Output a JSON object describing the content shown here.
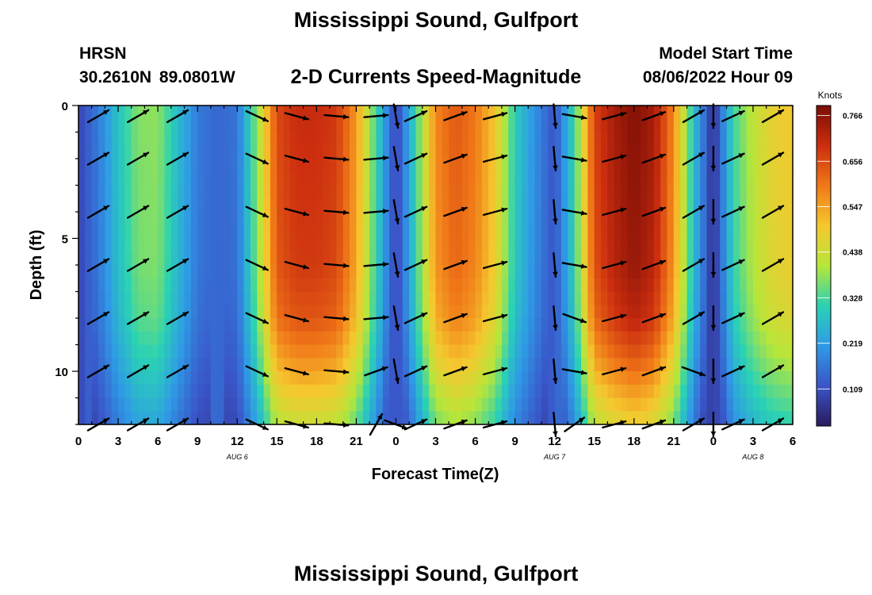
{
  "header": {
    "title": "Mississippi Sound, Gulfport",
    "station": "HRSN",
    "coordinates": "30.2610N  89.0801W",
    "subtitle": "2-D Currents Speed-Magnitude",
    "model_start_label": "Model Start Time",
    "model_start_value": "08/06/2022 Hour 09"
  },
  "footer": {
    "title": "Mississippi Sound, Gulfport"
  },
  "colors": {
    "colormap": [
      "#2a1a5e",
      "#3a55c8",
      "#2f9ae6",
      "#2ad2b4",
      "#b6e63a",
      "#f5c82e",
      "#f07818",
      "#cc2e0f",
      "#7a0d05"
    ],
    "arrow": "#000000"
  },
  "chart_data": {
    "type": "heatmap",
    "xlabel": "Forecast Time(Z)",
    "ylabel": "Depth (ft)",
    "colorbar_label": "Knots",
    "x_tick_labels": [
      "0",
      "3",
      "6",
      "9",
      "12",
      "15",
      "18",
      "21",
      "0",
      "3",
      "6",
      "9",
      "12",
      "15",
      "18",
      "21",
      "0",
      "3",
      "6"
    ],
    "date_labels": [
      {
        "label": "AUG 6",
        "hour": 12
      },
      {
        "label": "AUG 7",
        "hour": 36
      },
      {
        "label": "AUG 8",
        "hour": 51
      }
    ],
    "x_range_hours": [
      0,
      54
    ],
    "y_tick_labels": [
      "0",
      "5",
      "10"
    ],
    "y_ticks": [
      0,
      5,
      10
    ],
    "ylim": [
      12,
      0
    ],
    "colorbar_ticks": [
      0.109,
      0.219,
      0.328,
      0.438,
      0.547,
      0.656,
      0.766
    ],
    "colorbar_range": [
      0.02,
      0.79
    ],
    "grid": false,
    "speed_profile": {
      "hours": [
        0,
        1.5,
        3,
        4.5,
        6,
        7.5,
        9,
        10.5,
        12,
        13.5,
        15,
        16.5,
        18,
        19.5,
        21,
        22.5,
        24,
        25.5,
        27,
        28.5,
        30,
        31.5,
        33,
        34.5,
        36,
        37.5,
        39,
        40.5,
        42,
        43.5,
        45,
        46.5,
        48,
        49.5,
        51,
        52.5,
        54
      ],
      "knots": [
        0.09,
        0.17,
        0.28,
        0.37,
        0.38,
        0.27,
        0.17,
        0.14,
        0.16,
        0.38,
        0.66,
        0.7,
        0.7,
        0.68,
        0.56,
        0.32,
        0.08,
        0.32,
        0.58,
        0.64,
        0.6,
        0.5,
        0.3,
        0.2,
        0.11,
        0.32,
        0.67,
        0.74,
        0.78,
        0.74,
        0.58,
        0.28,
        0.05,
        0.32,
        0.42,
        0.48,
        0.5
      ],
      "depth_factor_knots": [
        [
          0,
          1.0
        ],
        [
          6,
          0.97
        ],
        [
          8,
          0.92
        ],
        [
          9.5,
          0.82
        ],
        [
          11,
          0.7
        ],
        [
          12,
          0.62
        ]
      ]
    },
    "vector_depths_ft": [
      0.4,
      2.0,
      4.0,
      6.0,
      8.0,
      10.0,
      12.0
    ],
    "vector_hours": [
      1.5,
      4.5,
      7.5,
      13.5,
      16.5,
      19.5,
      22.5,
      24,
      25.5,
      28.5,
      31.5,
      36,
      37.5,
      40.5,
      43.5,
      46.5,
      48,
      49.5,
      52.5
    ],
    "vector_directions_deg": [
      -30,
      -30,
      -30,
      25,
      15,
      5,
      -5,
      80,
      -25,
      -20,
      -15,
      85,
      10,
      -15,
      -20,
      -30,
      90,
      -25,
      -30
    ],
    "vector_direction_overrides": [
      {
        "depth_ft": 8.0,
        "hour": 37.5,
        "deg": 20
      },
      {
        "depth_ft": 10.0,
        "hour": 22.5,
        "deg": -20
      },
      {
        "depth_ft": 12.0,
        "hour": 22.5,
        "deg": -60
      },
      {
        "depth_ft": 12.0,
        "hour": 24,
        "deg": 20
      },
      {
        "depth_ft": 12.0,
        "hour": 37.5,
        "deg": -35
      },
      {
        "depth_ft": 10.0,
        "hour": 46.5,
        "deg": 20
      }
    ]
  }
}
